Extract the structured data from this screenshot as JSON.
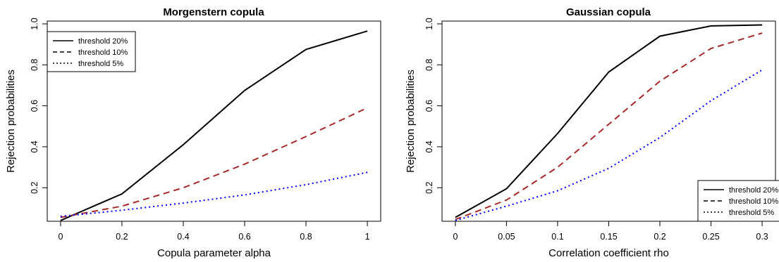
{
  "chart_data": [
    {
      "type": "line",
      "title": "Morgenstern copula",
      "xlabel": "Copula parameter alpha",
      "ylabel": "Rejection probabilities",
      "x": [
        0,
        0.2,
        0.4,
        0.6,
        0.8,
        1
      ],
      "xticks": [
        "0",
        "0.2",
        "0.4",
        "0.6",
        "0.8",
        "1"
      ],
      "yticks": [
        "0.2",
        "0.4",
        "0.6",
        "0.8",
        "1.0"
      ],
      "xlim": [
        0,
        1
      ],
      "ylim": [
        0.05,
        1.0
      ],
      "legend_position": "top-left",
      "series": [
        {
          "name": "threshold 20%",
          "color": "#000000",
          "dash": "solid",
          "values": [
            0.04,
            0.17,
            0.41,
            0.675,
            0.875,
            0.965
          ]
        },
        {
          "name": "threshold 10%",
          "color": "#a52a2a",
          "dash": "dashed",
          "values": [
            0.055,
            0.11,
            0.2,
            0.315,
            0.45,
            0.59
          ]
        },
        {
          "name": "threshold 5%",
          "color": "#0000ff",
          "dash": "dotted",
          "values": [
            0.06,
            0.09,
            0.125,
            0.165,
            0.215,
            0.275
          ]
        }
      ]
    },
    {
      "type": "line",
      "title": "Gaussian copula",
      "xlabel": "Correlation coefficient rho",
      "ylabel": "Rejection probabilities",
      "x": [
        0,
        0.05,
        0.1,
        0.15,
        0.2,
        0.25,
        0.3
      ],
      "xticks": [
        "0",
        "0.05",
        "0.1",
        "0.15",
        "0.2",
        "0.25",
        "0.3"
      ],
      "yticks": [
        "0.2",
        "0.4",
        "0.6",
        "0.8",
        "1.0"
      ],
      "xlim": [
        0,
        0.3
      ],
      "ylim": [
        0.05,
        1.0
      ],
      "legend_position": "bottom-right",
      "series": [
        {
          "name": "threshold 20%",
          "color": "#000000",
          "dash": "solid",
          "values": [
            0.055,
            0.195,
            0.465,
            0.765,
            0.94,
            0.99,
            0.995
          ]
        },
        {
          "name": "threshold 10%",
          "color": "#a52a2a",
          "dash": "dashed",
          "values": [
            0.045,
            0.14,
            0.3,
            0.51,
            0.72,
            0.88,
            0.955
          ]
        },
        {
          "name": "threshold 5%",
          "color": "#0000ff",
          "dash": "dotted",
          "values": [
            0.04,
            0.11,
            0.185,
            0.295,
            0.445,
            0.625,
            0.775
          ]
        }
      ]
    }
  ]
}
